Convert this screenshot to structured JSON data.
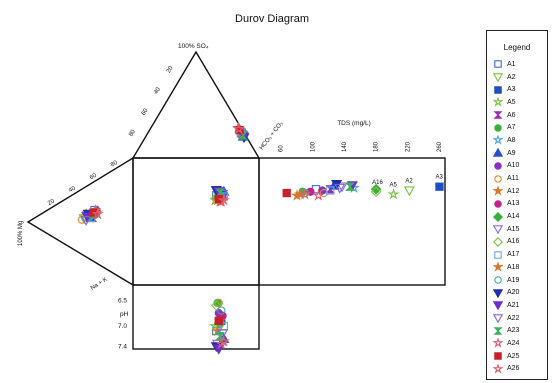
{
  "chart_data": {
    "type": "scatter",
    "title": "Durov Diagram",
    "legend_title": "Legend",
    "legend_position": "right",
    "labels": {
      "so4": "100% SO₄",
      "hco3": "HCO₃ + CO₃",
      "mg": "100% Mg",
      "na": "Na + K",
      "tds": "TDS (mg/L)",
      "ph": "pH"
    },
    "anion_ticks": [
      "20",
      "40",
      "60",
      "80"
    ],
    "cation_ticks": [
      "20",
      "40",
      "60",
      "80"
    ],
    "tds_ticks": [
      60,
      100,
      140,
      180,
      220,
      260
    ],
    "tds_range": [
      30,
      265
    ],
    "ph_ticks": [
      6.5,
      7.0,
      7.4
    ],
    "ph_range": [
      6.2,
      7.45
    ],
    "grid": false,
    "styles": {
      "A1": {
        "color": "#3a6fd8",
        "marker": "square",
        "fill": false
      },
      "A2": {
        "color": "#7cc242",
        "marker": "tri-down",
        "fill": false
      },
      "A3": {
        "color": "#1f4fbf",
        "marker": "square",
        "fill": true
      },
      "A5": {
        "color": "#7cc242",
        "marker": "star",
        "fill": false
      },
      "A6": {
        "color": "#9b2fae",
        "marker": "hourglass",
        "fill": true
      },
      "A7": {
        "color": "#3ab03a",
        "marker": "circle",
        "fill": true
      },
      "A8": {
        "color": "#4aa8e0",
        "marker": "star",
        "fill": false
      },
      "A9": {
        "color": "#2b4fc8",
        "marker": "tri-up",
        "fill": true
      },
      "A10": {
        "color": "#8b2fc9",
        "marker": "circle",
        "fill": true
      },
      "A11": {
        "color": "#e0892f",
        "marker": "circle",
        "fill": false
      },
      "A12": {
        "color": "#d8762a",
        "marker": "star",
        "fill": true
      },
      "A13": {
        "color": "#c2208c",
        "marker": "circle",
        "fill": true
      },
      "A14": {
        "color": "#3ab03a",
        "marker": "diamond",
        "fill": true
      },
      "A15": {
        "color": "#8a6ad8",
        "marker": "tri-down",
        "fill": false
      },
      "A16": {
        "color": "#7cc242",
        "marker": "diamond",
        "fill": false
      },
      "A17": {
        "color": "#6aa8e0",
        "marker": "square",
        "fill": false
      },
      "A18": {
        "color": "#d8762a",
        "marker": "star",
        "fill": true
      },
      "A19": {
        "color": "#3ab0a0",
        "marker": "circle",
        "fill": false
      },
      "A20": {
        "color": "#1f2fa8",
        "marker": "tri-down",
        "fill": true
      },
      "A21": {
        "color": "#6a2fc9",
        "marker": "tri-down",
        "fill": true
      },
      "A22": {
        "color": "#7a6ad8",
        "marker": "tri-down",
        "fill": false
      },
      "A23": {
        "color": "#3ab05a",
        "marker": "hourglass",
        "fill": true
      },
      "A24": {
        "color": "#e05a7a",
        "marker": "star",
        "fill": false
      },
      "A25": {
        "color": "#c8202a",
        "marker": "square",
        "fill": true
      },
      "A26": {
        "color": "#e0606a",
        "marker": "star",
        "fill": false
      }
    },
    "series": [
      {
        "name": "A1",
        "anion_hco3": 88,
        "cation_mg": 50,
        "cation_na": 28,
        "tds": 102,
        "ph": 7.1
      },
      {
        "name": "A2",
        "anion_hco3": 87,
        "cation_mg": 40,
        "cation_na": 30,
        "tds": 220,
        "ph": 7.05
      },
      {
        "name": "A3",
        "anion_hco3": 90,
        "cation_mg": 45,
        "cation_na": 32,
        "tds": 258,
        "ph": 6.9
      },
      {
        "name": "A5",
        "anion_hco3": 84,
        "cation_mg": 42,
        "cation_na": 27,
        "tds": 200,
        "ph": 7.0
      },
      {
        "name": "A6",
        "anion_hco3": 88,
        "cation_mg": 44,
        "cation_na": 31,
        "tds": 120,
        "ph": 7.2
      },
      {
        "name": "A7",
        "anion_hco3": 86,
        "cation_mg": 48,
        "cation_na": 29,
        "tds": 85,
        "ph": 6.55
      },
      {
        "name": "A8",
        "anion_hco3": 89,
        "cation_mg": 46,
        "cation_na": 33,
        "tds": 150,
        "ph": 7.3
      },
      {
        "name": "A9",
        "anion_hco3": 91,
        "cation_mg": 47,
        "cation_na": 34,
        "tds": 125,
        "ph": 7.25
      },
      {
        "name": "A10",
        "anion_hco3": 87,
        "cation_mg": 52,
        "cation_na": 30,
        "tds": 110,
        "ph": 6.75
      },
      {
        "name": "A11",
        "anion_hco3": 85,
        "cation_mg": 38,
        "cation_na": 30,
        "tds": 112,
        "ph": 6.55
      },
      {
        "name": "A12",
        "anion_hco3": 83,
        "cation_mg": 48,
        "cation_na": 31,
        "tds": 78,
        "ph": 6.9
      },
      {
        "name": "A13",
        "anion_hco3": 86,
        "cation_mg": 50,
        "cation_na": 33,
        "tds": 95,
        "ph": 6.8
      },
      {
        "name": "A14",
        "anion_hco3": 88,
        "cation_mg": 46,
        "cation_na": 31,
        "tds": 178,
        "ph": 6.95
      },
      {
        "name": "A15",
        "anion_hco3": 90,
        "cation_mg": 43,
        "cation_na": 29,
        "tds": 135,
        "ph": 7.35
      },
      {
        "name": "A16",
        "anion_hco3": 86,
        "cation_mg": 41,
        "cation_na": 28,
        "tds": 178,
        "ph": 6.6
      },
      {
        "name": "A17",
        "anion_hco3": 87,
        "cation_mg": 47,
        "cation_na": 34,
        "tds": 120,
        "ph": 7.0
      },
      {
        "name": "A18",
        "anion_hco3": 84,
        "cation_mg": 51,
        "cation_na": 29,
        "tds": 82,
        "ph": 7.1
      },
      {
        "name": "A19",
        "anion_hco3": 85,
        "cation_mg": 45,
        "cation_na": 32,
        "tds": 88,
        "ph": 6.7
      },
      {
        "name": "A20",
        "anion_hco3": 92,
        "cation_mg": 44,
        "cation_na": 28,
        "tds": 128,
        "ph": 7.4
      },
      {
        "name": "A21",
        "anion_hco3": 91,
        "cation_mg": 43,
        "cation_na": 30,
        "tds": 148,
        "ph": 7.45
      },
      {
        "name": "A22",
        "anion_hco3": 89,
        "cation_mg": 42,
        "cation_na": 33,
        "tds": 132,
        "ph": 7.15
      },
      {
        "name": "A23",
        "anion_hco3": 90,
        "cation_mg": 49,
        "cation_na": 31,
        "tds": 145,
        "ph": 7.2
      },
      {
        "name": "A24",
        "anion_hco3": 83,
        "cation_mg": 52,
        "cation_na": 32,
        "tds": 105,
        "ph": 7.35
      },
      {
        "name": "A25",
        "anion_hco3": 85,
        "cation_mg": 49,
        "cation_na": 30,
        "tds": 65,
        "ph": 6.9
      },
      {
        "name": "A26",
        "anion_hco3": 84,
        "cation_mg": 53,
        "cation_na": 34,
        "tds": 88,
        "ph": 7.3
      }
    ],
    "annotations": [
      "A16",
      "A3",
      "A5",
      "A2"
    ]
  }
}
